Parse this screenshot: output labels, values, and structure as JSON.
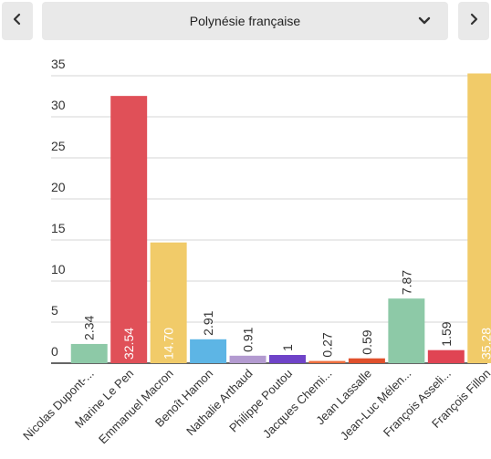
{
  "header": {
    "prev_icon": "chevron-left-icon",
    "next_icon": "chevron-right-icon",
    "region_select": {
      "selected": "Polynésie française",
      "icon": "chevron-down-icon"
    }
  },
  "chart_data": {
    "type": "bar",
    "categories": [
      "Nicolas Dupont-...",
      "Marine Le Pen",
      "Emmanuel Macron",
      "Benoît Hamon",
      "Nathalie Arthaud",
      "Philippe Poutou",
      "Jacques Chemi...",
      "Jean Lassalle",
      "Jean-Luc Mélen...",
      "François Asseli...",
      "François Fillon"
    ],
    "values": [
      2.34,
      32.54,
      14.7,
      2.91,
      0.91,
      1,
      0.27,
      0.59,
      7.87,
      1.59,
      35.28
    ],
    "value_labels": [
      "2.34",
      "32.54",
      "14.70",
      "2.91",
      "0.91",
      "1",
      "0.27",
      "0.59",
      "7.87",
      "1.59",
      "35.28"
    ],
    "colors": [
      "#8dc9a7",
      "#e05058",
      "#f1cb69",
      "#5db5e5",
      "#b39ad0",
      "#6f43c8",
      "#ee6e3d",
      "#e0502c",
      "#8dc9a7",
      "#e04453",
      "#f1cb69"
    ],
    "yticks": [
      0,
      5,
      10,
      15,
      20,
      25,
      30,
      35
    ],
    "ylim": [
      0,
      35
    ],
    "grid": true
  }
}
